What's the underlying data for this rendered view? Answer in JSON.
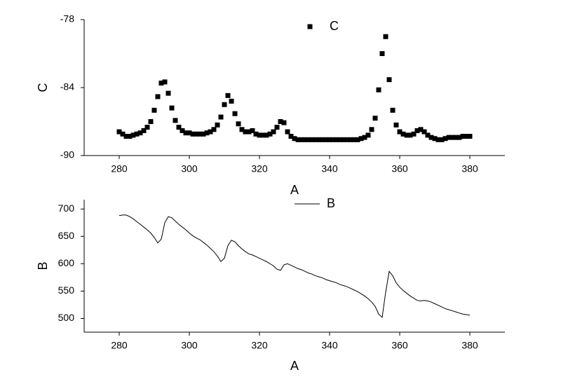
{
  "chart_data": [
    {
      "type": "scatter",
      "xlabel": "A",
      "ylabel": "C",
      "x": [
        280,
        281,
        282,
        283,
        284,
        285,
        286,
        287,
        288,
        289,
        290,
        291,
        292,
        293,
        294,
        295,
        296,
        297,
        298,
        299,
        300,
        301,
        302,
        303,
        304,
        305,
        306,
        307,
        308,
        309,
        310,
        311,
        312,
        313,
        314,
        315,
        316,
        317,
        318,
        319,
        320,
        321,
        322,
        323,
        324,
        325,
        326,
        327,
        328,
        329,
        330,
        331,
        332,
        333,
        334,
        335,
        336,
        337,
        338,
        339,
        340,
        341,
        342,
        343,
        344,
        345,
        346,
        347,
        348,
        349,
        350,
        351,
        352,
        353,
        354,
        355,
        356,
        357,
        358,
        359,
        360,
        361,
        362,
        363,
        364,
        365,
        366,
        367,
        368,
        369,
        370,
        371,
        372,
        373,
        374,
        375,
        376,
        377,
        378,
        379,
        380
      ],
      "series": [
        {
          "name": "C",
          "color": "#000000",
          "marker": "square",
          "values": [
            -87.9,
            -88.1,
            -88.3,
            -88.3,
            -88.2,
            -88.1,
            -88.0,
            -87.8,
            -87.5,
            -87.0,
            -86.0,
            -84.8,
            -83.6,
            -83.5,
            -84.5,
            -85.8,
            -86.9,
            -87.5,
            -87.8,
            -88.0,
            -88.0,
            -88.1,
            -88.1,
            -88.1,
            -88.1,
            -88.0,
            -87.9,
            -87.7,
            -87.3,
            -86.6,
            -85.5,
            -84.7,
            -85.2,
            -86.3,
            -87.2,
            -87.7,
            -87.9,
            -87.9,
            -87.8,
            -88.1,
            -88.2,
            -88.2,
            -88.2,
            -88.1,
            -87.9,
            -87.5,
            -87.0,
            -87.1,
            -87.9,
            -88.3,
            -88.5,
            -88.6,
            -88.6,
            -88.6,
            -88.6,
            -88.6,
            -88.6,
            -88.6,
            -88.6,
            -88.6,
            -88.6,
            -88.6,
            -88.6,
            -88.6,
            -88.6,
            -88.6,
            -88.6,
            -88.6,
            -88.6,
            -88.5,
            -88.4,
            -88.2,
            -87.7,
            -86.7,
            -84.2,
            -81.0,
            -79.5,
            -83.3,
            -86.0,
            -87.3,
            -87.9,
            -88.1,
            -88.2,
            -88.2,
            -88.1,
            -87.8,
            -87.7,
            -87.9,
            -88.2,
            -88.4,
            -88.5,
            -88.6,
            -88.6,
            -88.5,
            -88.4,
            -88.4,
            -88.4,
            -88.4,
            -88.3,
            -88.3,
            -88.3
          ]
        }
      ],
      "xlim": [
        270,
        390
      ],
      "xticks": [
        280,
        300,
        320,
        340,
        360,
        380
      ],
      "ylim": [
        -90,
        -78
      ],
      "yticks": [
        -90,
        -84,
        -78
      ]
    },
    {
      "type": "line",
      "xlabel": "A",
      "ylabel": "B",
      "x": [
        280,
        281,
        282,
        283,
        284,
        285,
        286,
        287,
        288,
        289,
        290,
        291,
        292,
        293,
        294,
        295,
        296,
        297,
        298,
        299,
        300,
        301,
        302,
        303,
        304,
        305,
        306,
        307,
        308,
        309,
        310,
        311,
        312,
        313,
        314,
        315,
        316,
        317,
        318,
        319,
        320,
        321,
        322,
        323,
        324,
        325,
        326,
        327,
        328,
        329,
        330,
        331,
        332,
        333,
        334,
        335,
        336,
        337,
        338,
        339,
        340,
        341,
        342,
        343,
        344,
        345,
        346,
        347,
        348,
        349,
        350,
        351,
        352,
        353,
        354,
        355,
        356,
        357,
        358,
        359,
        360,
        361,
        362,
        363,
        364,
        365,
        366,
        367,
        368,
        369,
        370,
        371,
        372,
        373,
        374,
        375,
        376,
        377,
        378,
        379,
        380
      ],
      "series": [
        {
          "name": "B",
          "color": "#000000",
          "values": [
            688,
            689,
            689,
            686,
            682,
            677,
            672,
            667,
            662,
            656,
            648,
            638,
            645,
            675,
            686,
            684,
            678,
            672,
            667,
            662,
            656,
            651,
            647,
            644,
            639,
            634,
            628,
            622,
            614,
            604,
            610,
            633,
            643,
            640,
            633,
            627,
            622,
            618,
            616,
            613,
            610,
            607,
            604,
            600,
            596,
            590,
            588,
            598,
            600,
            597,
            594,
            591,
            589,
            586,
            583,
            581,
            578,
            576,
            574,
            571,
            569,
            567,
            565,
            562,
            560,
            558,
            555,
            552,
            549,
            545,
            541,
            536,
            530,
            522,
            508,
            502,
            548,
            586,
            578,
            565,
            557,
            551,
            546,
            541,
            537,
            533,
            532,
            533,
            532,
            530,
            527,
            524,
            521,
            518,
            516,
            514,
            512,
            510,
            508,
            507,
            506
          ]
        }
      ],
      "xlim": [
        270,
        390
      ],
      "xticks": [
        280,
        300,
        320,
        340,
        360,
        380
      ],
      "ylim": [
        475,
        717
      ],
      "yticks": [
        500,
        550,
        600,
        650,
        700
      ]
    }
  ]
}
